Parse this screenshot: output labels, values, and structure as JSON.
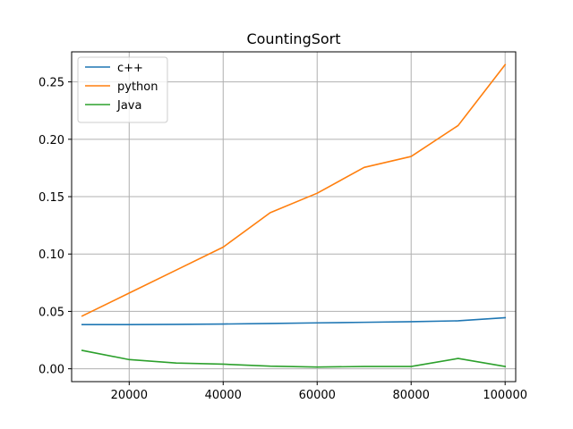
{
  "chart_data": {
    "type": "line",
    "title": "CountingSort",
    "xlabel": "",
    "ylabel": "",
    "x": [
      10000,
      20000,
      30000,
      40000,
      50000,
      60000,
      70000,
      80000,
      90000,
      100000
    ],
    "series": [
      {
        "name": "c++",
        "color": "#1f77b4",
        "values": [
          0.0385,
          0.0385,
          0.0387,
          0.039,
          0.0395,
          0.04,
          0.0405,
          0.041,
          0.0418,
          0.0445
        ]
      },
      {
        "name": "python",
        "color": "#ff7f0e",
        "values": [
          0.046,
          0.066,
          0.086,
          0.106,
          0.136,
          0.153,
          0.1755,
          0.185,
          0.212,
          0.265
        ]
      },
      {
        "name": "Java",
        "color": "#2ca02c",
        "values": [
          0.016,
          0.008,
          0.005,
          0.004,
          0.0023,
          0.0015,
          0.002,
          0.002,
          0.009,
          0.002
        ]
      }
    ],
    "xlim": [
      7750,
      102250
    ],
    "ylim": [
      -0.0112,
      0.2762
    ],
    "xticks": [
      20000,
      40000,
      60000,
      80000,
      100000
    ],
    "xtick_labels": [
      "20000",
      "40000",
      "60000",
      "80000",
      "100000"
    ],
    "yticks": [
      0.0,
      0.05,
      0.1,
      0.15,
      0.2,
      0.25
    ],
    "ytick_labels": [
      "0.00",
      "0.05",
      "0.10",
      "0.15",
      "0.20",
      "0.25"
    ],
    "grid": true,
    "legend_position": "top-left"
  }
}
